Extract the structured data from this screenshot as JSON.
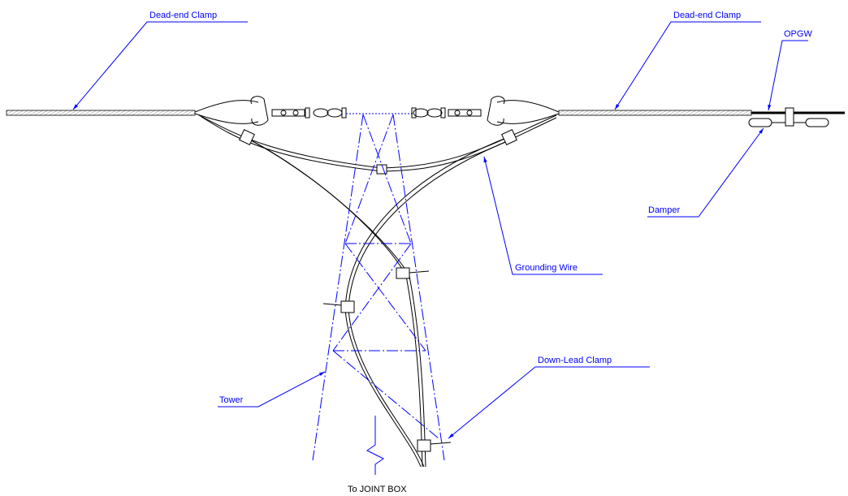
{
  "labels": {
    "dead_end_clamp_left": "Dead-end Clamp",
    "dead_end_clamp_right": "Dead-end Clamp",
    "opgw": "OPGW",
    "damper": "Damper",
    "grounding_wire": "Grounding Wire",
    "down_lead_clamp": "Down-Lead Clamp",
    "tower": "Tower",
    "to_joint_box": "To JOINT BOX"
  }
}
